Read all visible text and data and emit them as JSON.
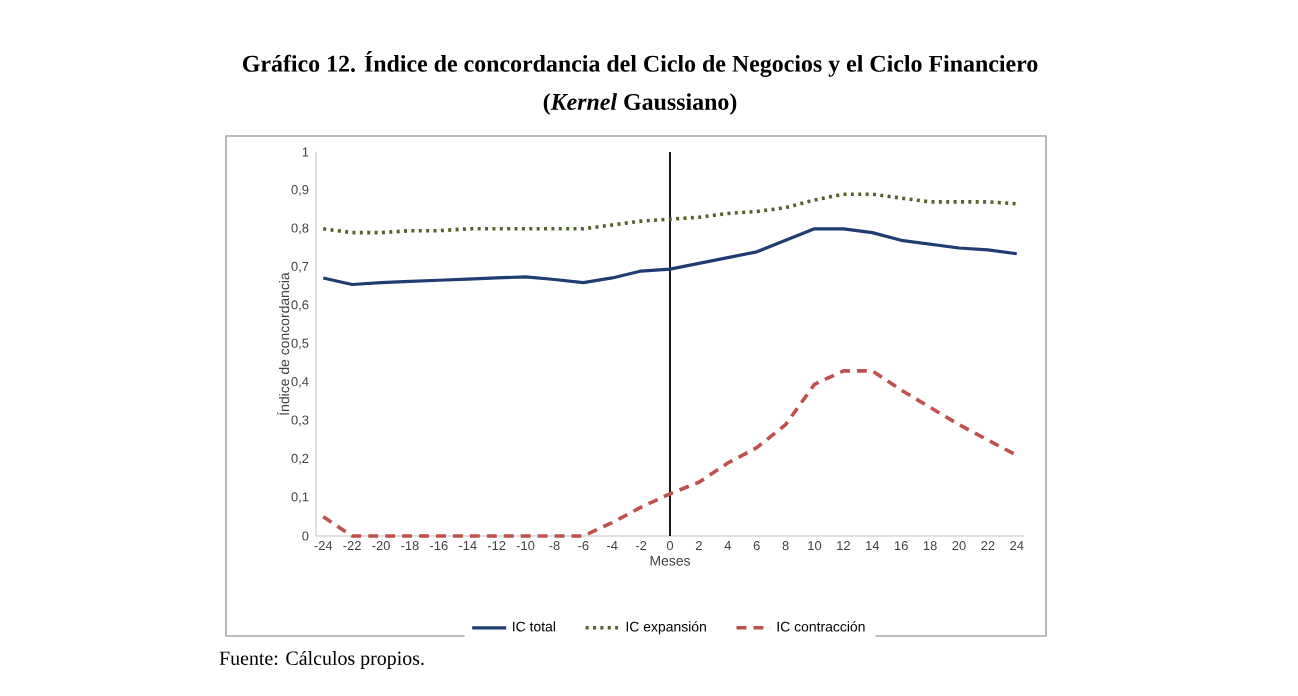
{
  "chart_data": {
    "type": "line",
    "title": "Gráfico 12. Índice de concordancia del Ciclo de Negocios y el Ciclo Financiero",
    "subtitle": "(*Kernel* Gaussiano)",
    "xlabel": "Meses",
    "ylabel": "Índice de concordancia",
    "annotations": [
      "Fuente: Cálculos propios."
    ],
    "x": [
      -24,
      -22,
      -20,
      -18,
      -16,
      -14,
      -12,
      -10,
      -8,
      -6,
      -4,
      -2,
      0,
      2,
      4,
      6,
      8,
      10,
      12,
      14,
      16,
      18,
      20,
      22,
      24
    ],
    "series": [
      {
        "name": "IC total",
        "color": "#1f3c73",
        "line_style": "solid",
        "values": [
          0.672,
          0.655,
          0.66,
          0.663,
          0.666,
          0.669,
          0.672,
          0.675,
          0.668,
          0.66,
          0.672,
          0.69,
          0.695,
          0.71,
          0.725,
          0.74,
          0.77,
          0.8,
          0.8,
          0.79,
          0.77,
          0.76,
          0.75,
          0.745,
          0.735
        ]
      },
      {
        "name": "IC expansión",
        "color": "#4f6228",
        "line_style": "dotted",
        "values": [
          0.8,
          0.79,
          0.79,
          0.795,
          0.795,
          0.8,
          0.8,
          0.8,
          0.8,
          0.8,
          0.81,
          0.82,
          0.825,
          0.83,
          0.84,
          0.845,
          0.855,
          0.875,
          0.89,
          0.89,
          0.88,
          0.87,
          0.87,
          0.87,
          0.865
        ]
      },
      {
        "name": "IC contracción",
        "color": "#c0504d",
        "line_style": "dashed",
        "values": [
          0.05,
          0,
          0,
          0,
          0,
          0,
          0,
          0,
          0,
          0,
          0.035,
          0.075,
          0.11,
          0.14,
          0.19,
          0.23,
          0.29,
          0.395,
          0.43,
          0.43,
          0.38,
          0.335,
          0.29,
          0.25,
          0.21
        ]
      }
    ],
    "xlim": [
      -24.5,
      24.5
    ],
    "xticks": [
      -24,
      -22,
      -20,
      -18,
      -16,
      -14,
      -12,
      -10,
      -8,
      -6,
      -4,
      -2,
      0,
      2,
      4,
      6,
      8,
      10,
      12,
      14,
      16,
      18,
      20,
      22,
      24
    ],
    "ylim": [
      0,
      1
    ],
    "yticks": [
      0,
      {
        "value": 0.1,
        "label": "0,1"
      },
      {
        "value": 0.2,
        "label": "0,2"
      },
      {
        "value": 0.3,
        "label": "0,3"
      },
      {
        "value": 0.4,
        "label": "0,4"
      },
      {
        "value": 0.5,
        "label": "0,5"
      },
      {
        "value": 0.6,
        "label": "0,6"
      },
      {
        "value": 0.7,
        "label": "0,7"
      },
      {
        "value": 0.8,
        "label": "0,8"
      },
      {
        "value": 0.9,
        "label": "0,9"
      },
      1
    ],
    "ref_lines": [
      {
        "axis": "x",
        "value": 0,
        "color": "#000000"
      }
    ],
    "grid": false,
    "legend": "bottom",
    "marker": "none"
  }
}
